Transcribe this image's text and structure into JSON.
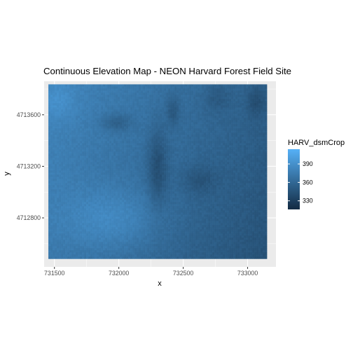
{
  "chart_data": {
    "type": "heatmap",
    "title": "Continuous Elevation Map - NEON Harvard Forest Field Site",
    "xlabel": "x",
    "ylabel": "y",
    "xlim": [
      731420,
      733220
    ],
    "ylim": [
      4712420,
      4713860
    ],
    "data_extent": {
      "x": [
        731453,
        733150
      ],
      "y": [
        4712489,
        4713836
      ]
    },
    "x_ticks": [
      731500,
      732000,
      732500,
      733000
    ],
    "x_tick_labels": [
      "731500",
      "732000",
      "732500",
      "733000"
    ],
    "y_ticks": [
      4712800,
      4713200,
      4713600
    ],
    "y_tick_labels": [
      "4712800",
      "4713200",
      "4713600"
    ],
    "grid": true,
    "legend": {
      "title": "HARV_dsmCrop",
      "placement": "right",
      "range": [
        316,
        414
      ],
      "ticks": [
        330,
        360,
        390
      ],
      "tick_labels": [
        "330",
        "360",
        "390"
      ],
      "color_low": "#132B43",
      "color_high": "#56B1F7"
    },
    "background_color": "#EBEBEB",
    "grid_color": "#FFFFFF"
  }
}
